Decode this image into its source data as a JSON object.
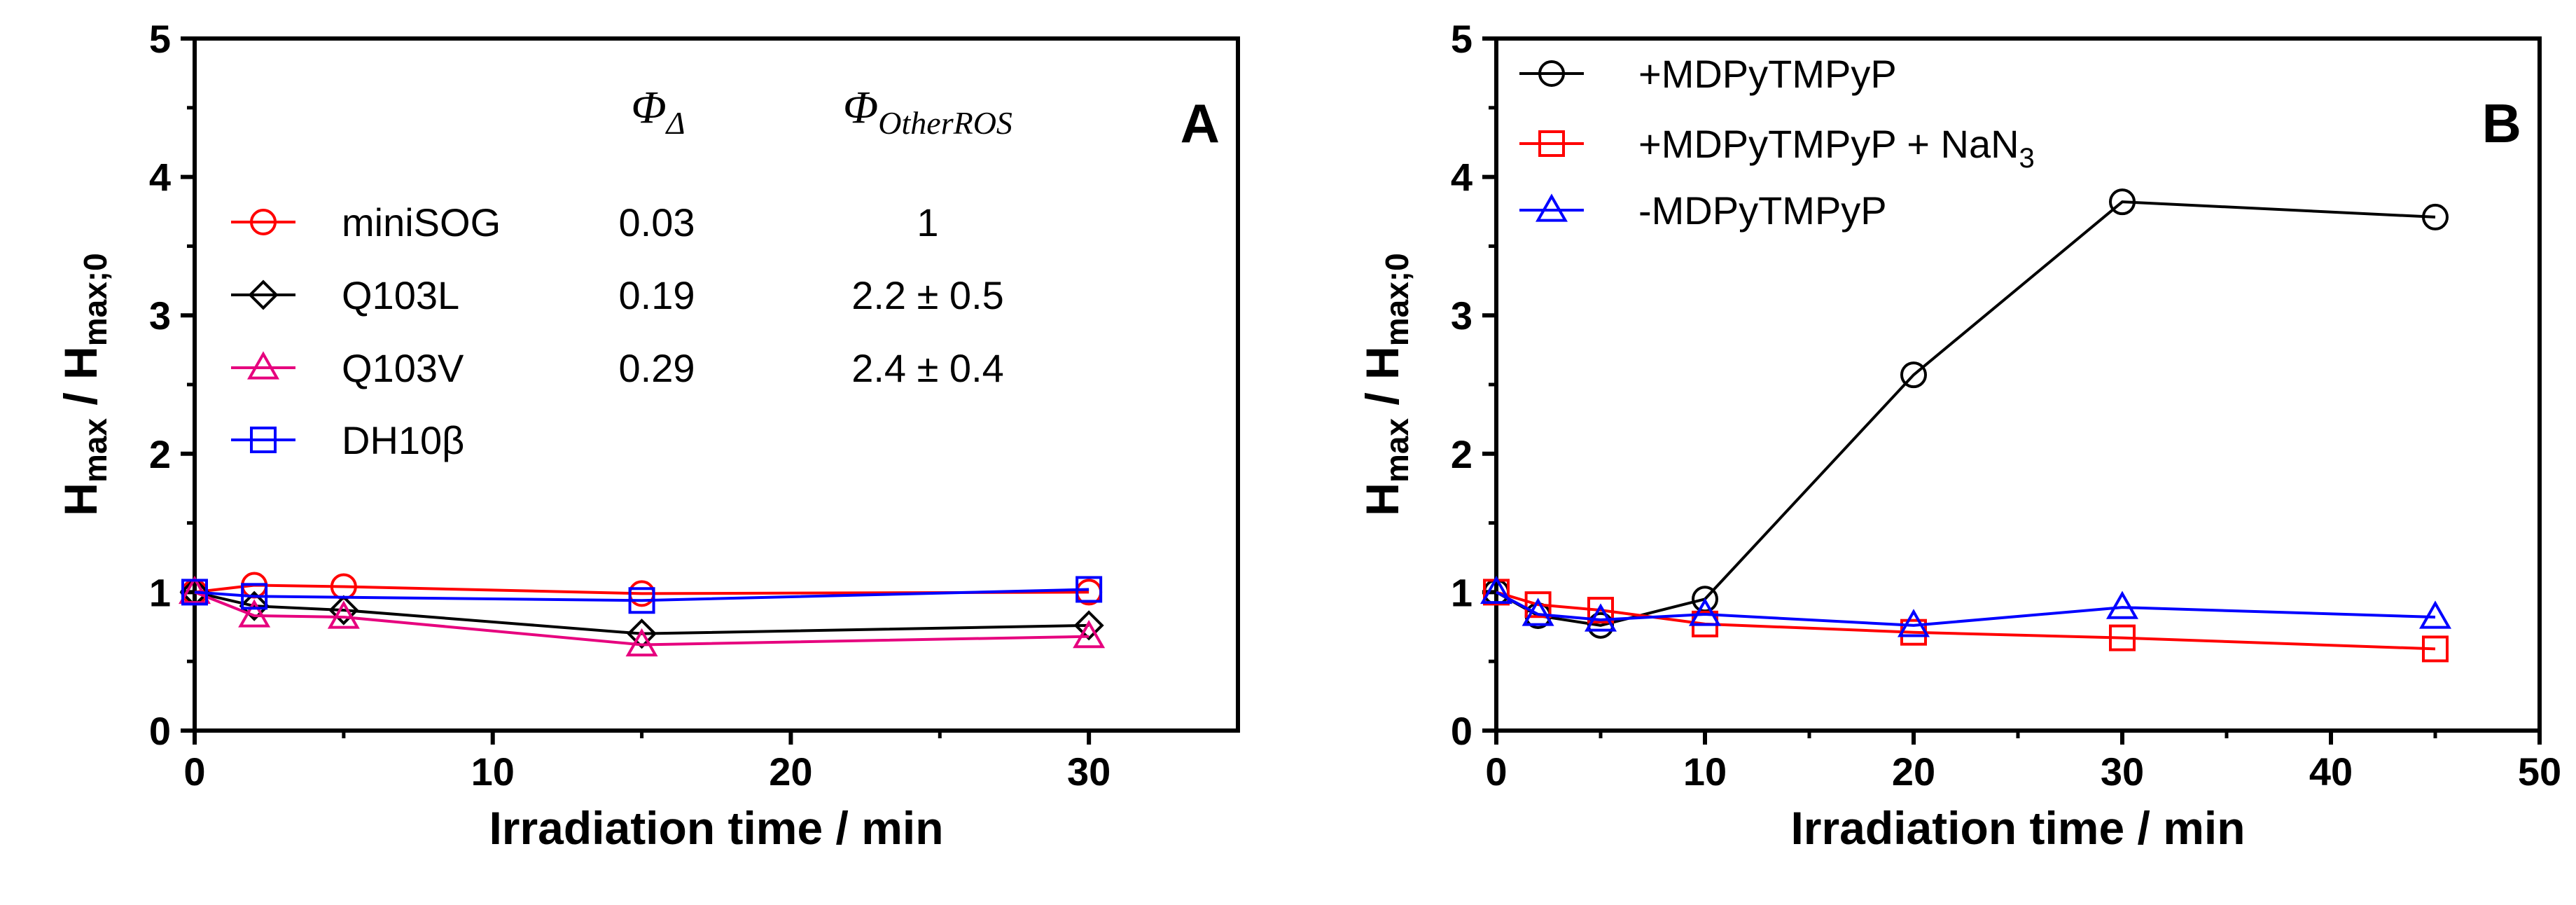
{
  "chart_data": [
    {
      "panel_label": "A",
      "type": "line",
      "xlabel": "Irradiation time / min",
      "ylabel_main": "H",
      "ylabel_sub1": "max",
      "ylabel_sep": " / H",
      "ylabel_sub2": "max;0",
      "xlim": [
        0,
        35
      ],
      "ylim": [
        0,
        5
      ],
      "xticks": [
        "0",
        "10",
        "20",
        "30"
      ],
      "xtick_values": [
        0,
        10,
        20,
        30
      ],
      "yticks": [
        "0",
        "1",
        "2",
        "3",
        "4",
        "5"
      ],
      "ytick_values": [
        0,
        1,
        2,
        3,
        4,
        5
      ],
      "table_headers": {
        "phi_delta": "Φ",
        "phi_delta_sub": "Δ",
        "phi_other": "Φ",
        "phi_other_sub": "OtherROS"
      },
      "series": [
        {
          "name": "miniSOG",
          "color": "#ff0000",
          "marker": "circle",
          "phi_delta": "0.03",
          "phi_other": "1",
          "x": [
            0,
            2,
            5,
            15,
            30
          ],
          "y": [
            1.0,
            1.05,
            1.04,
            0.99,
            1.0
          ]
        },
        {
          "name": "Q103L",
          "color": "#000000",
          "marker": "diamond",
          "phi_delta": "0.19",
          "phi_other": "2.2 ± 0.5",
          "x": [
            0,
            2,
            5,
            15,
            30
          ],
          "y": [
            1.0,
            0.9,
            0.87,
            0.7,
            0.76
          ]
        },
        {
          "name": "Q103V",
          "color": "#e6007e",
          "marker": "triangle",
          "phi_delta": "0.29",
          "phi_other": "2.4 ± 0.4",
          "x": [
            0,
            2,
            5,
            15,
            30
          ],
          "y": [
            1.0,
            0.83,
            0.82,
            0.62,
            0.68
          ]
        },
        {
          "name": "DH10β",
          "color": "#0000ff",
          "marker": "square",
          "phi_delta": "",
          "phi_other": "",
          "x": [
            0,
            2,
            15,
            30
          ],
          "y": [
            1.0,
            0.97,
            0.94,
            1.02
          ]
        }
      ]
    },
    {
      "panel_label": "B",
      "type": "line",
      "xlabel": "Irradiation time / min",
      "ylabel_main": "H",
      "ylabel_sub1": "max",
      "ylabel_sep": " / H",
      "ylabel_sub2": "max;0",
      "xlim": [
        0,
        50
      ],
      "ylim": [
        0,
        5
      ],
      "xticks": [
        "0",
        "10",
        "20",
        "30",
        "40",
        "50"
      ],
      "xtick_values": [
        0,
        10,
        20,
        30,
        40,
        50
      ],
      "yticks": [
        "0",
        "1",
        "2",
        "3",
        "4",
        "5"
      ],
      "ytick_values": [
        0,
        1,
        2,
        3,
        4,
        5
      ],
      "series": [
        {
          "name": "+MDPyTMPyP",
          "name_sub": "",
          "color": "#000000",
          "marker": "circle",
          "x": [
            0,
            2,
            5,
            10,
            20,
            30,
            45
          ],
          "y": [
            1.0,
            0.83,
            0.76,
            0.95,
            2.57,
            3.82,
            3.71
          ]
        },
        {
          "name": "+MDPyTMPyP + NaN",
          "name_sub": "3",
          "color": "#ff0000",
          "marker": "square",
          "x": [
            0,
            2,
            5,
            10,
            20,
            30,
            45
          ],
          "y": [
            1.0,
            0.91,
            0.87,
            0.77,
            0.71,
            0.67,
            0.59
          ]
        },
        {
          "name": "-MDPyTMPyP",
          "name_sub": "",
          "color": "#0000ff",
          "marker": "triangle",
          "x": [
            0,
            2,
            5,
            10,
            20,
            30,
            45
          ],
          "y": [
            1.0,
            0.84,
            0.8,
            0.84,
            0.76,
            0.89,
            0.82
          ]
        }
      ]
    }
  ]
}
